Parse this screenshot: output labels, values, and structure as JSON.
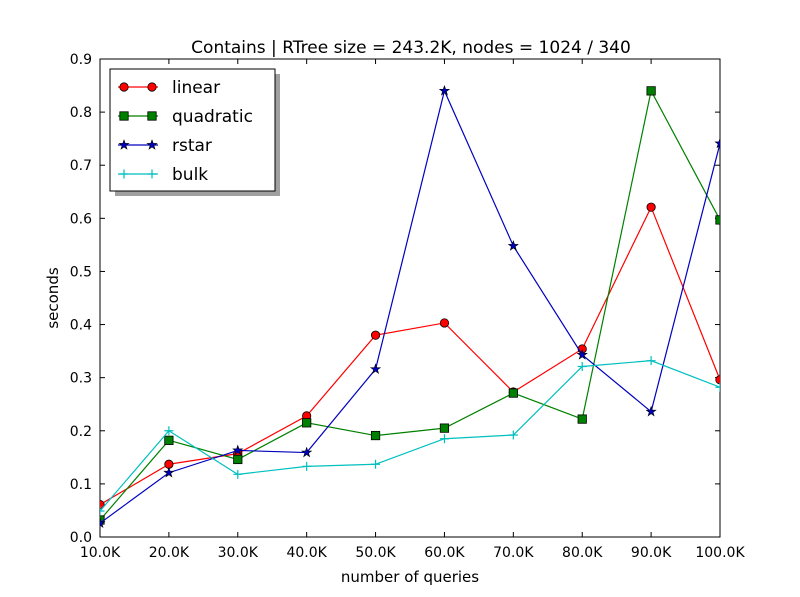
{
  "chart_data": {
    "type": "line",
    "title": "Contains | RTree size = 243.2K, nodes = 1024 / 340",
    "xlabel": "number of queries",
    "ylabel": "seconds",
    "categories": [
      "10.0K",
      "20.0K",
      "30.0K",
      "40.0K",
      "50.0K",
      "60.0K",
      "70.0K",
      "80.0K",
      "90.0K",
      "100.0K"
    ],
    "ylim": [
      0.0,
      0.9
    ],
    "yticks": [
      "0.0",
      "0.1",
      "0.2",
      "0.3",
      "0.4",
      "0.5",
      "0.6",
      "0.7",
      "0.8",
      "0.9"
    ],
    "grid": false,
    "legend_position": "top-left",
    "series": [
      {
        "name": "linear",
        "color": "#ff0000",
        "marker": "circle",
        "values": [
          0.061,
          0.137,
          0.157,
          0.228,
          0.38,
          0.403,
          0.273,
          0.354,
          0.621,
          0.296
        ]
      },
      {
        "name": "quadratic",
        "color": "#008000",
        "marker": "square",
        "values": [
          0.032,
          0.182,
          0.146,
          0.215,
          0.191,
          0.205,
          0.271,
          0.222,
          0.84,
          0.597
        ]
      },
      {
        "name": "rstar",
        "color": "#0000bf",
        "marker": "star",
        "values": [
          0.026,
          0.121,
          0.163,
          0.159,
          0.316,
          0.84,
          0.548,
          0.343,
          0.236,
          0.741
        ]
      },
      {
        "name": "bulk",
        "color": "#00bfbf",
        "marker": "plus",
        "values": [
          0.049,
          0.2,
          0.118,
          0.133,
          0.137,
          0.185,
          0.192,
          0.321,
          0.332,
          0.282
        ]
      }
    ]
  }
}
